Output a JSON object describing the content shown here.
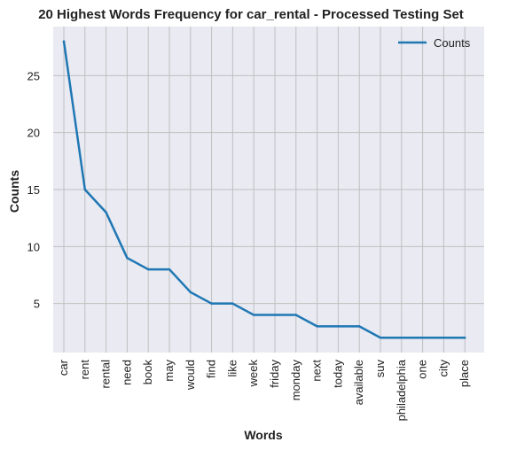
{
  "chart_data": {
    "type": "line",
    "title": "20 Highest Words Frequency for car_rental - Processed Testing Set",
    "xlabel": "Words",
    "ylabel": "Counts",
    "categories": [
      "car",
      "rent",
      "rental",
      "need",
      "book",
      "may",
      "would",
      "find",
      "like",
      "week",
      "friday",
      "monday",
      "next",
      "today",
      "available",
      "suv",
      "philadelphia",
      "one",
      "city",
      "place"
    ],
    "series": [
      {
        "name": "Counts",
        "values": [
          28,
          15,
          13,
          9,
          8,
          8,
          6,
          5,
          5,
          4,
          4,
          4,
          3,
          3,
          3,
          2,
          2,
          2,
          2,
          2
        ],
        "color": "#1f77b4"
      }
    ],
    "ylim": [
      0.7,
      29.3
    ],
    "yticks": [
      5,
      10,
      15,
      20,
      25
    ],
    "grid": true,
    "legend_position": "top-right",
    "plot_background": "#e9eaf2",
    "grid_color": "#c0c0c0"
  }
}
